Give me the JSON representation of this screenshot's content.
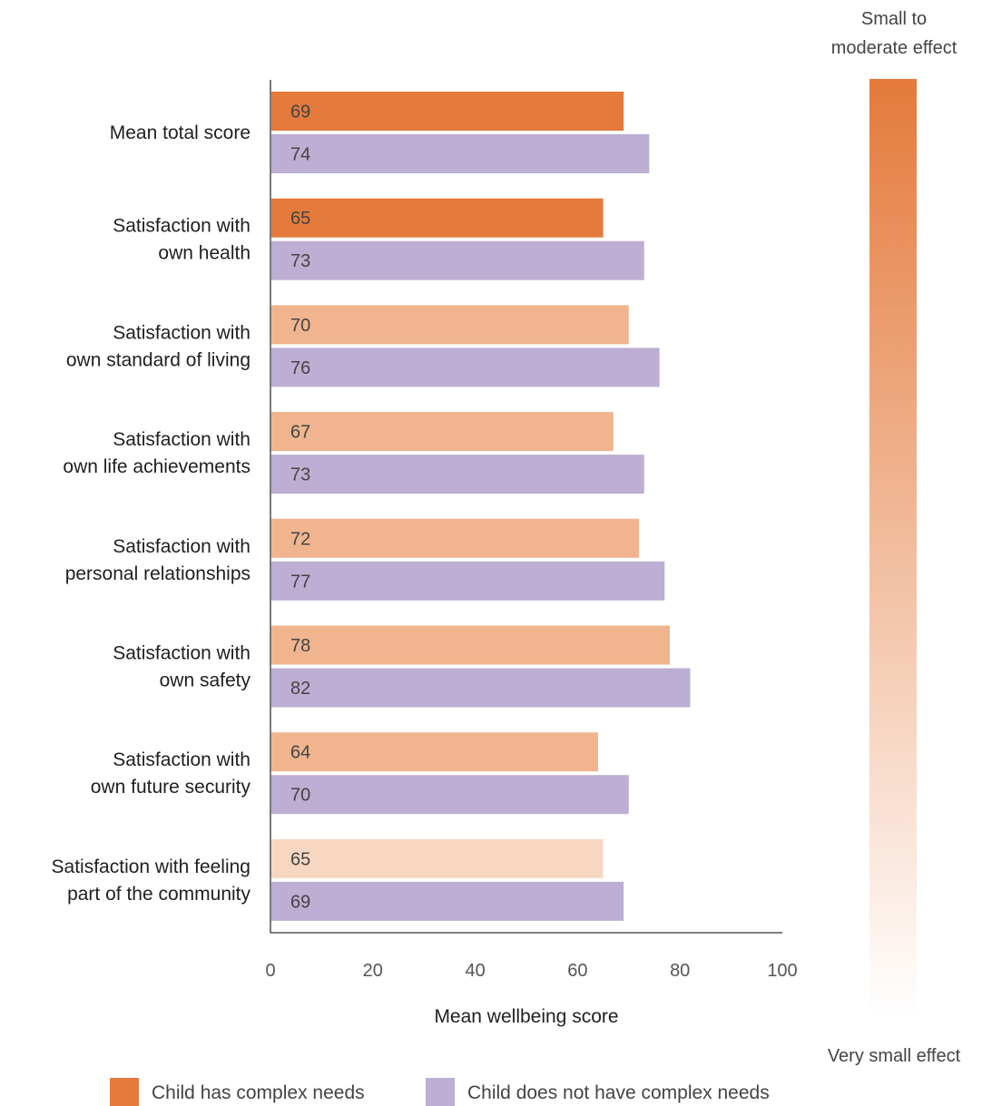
{
  "chart_data": {
    "type": "bar",
    "orientation": "horizontal",
    "categories": [
      [
        "Mean total score"
      ],
      [
        "Satisfaction with",
        "own health"
      ],
      [
        "Satisfaction with",
        "own standard of living"
      ],
      [
        "Satisfaction with",
        "own life achievements"
      ],
      [
        "Satisfaction with",
        "personal relationships"
      ],
      [
        "Satisfaction with",
        "own safety"
      ],
      [
        "Satisfaction with",
        "own future security"
      ],
      [
        "Satisfaction with feeling",
        "part of the community"
      ]
    ],
    "series": [
      {
        "name": "Child has complex needs",
        "values": [
          69,
          65,
          70,
          67,
          72,
          78,
          64,
          65
        ],
        "colors": [
          "#e47a3b",
          "#e47a3b",
          "#f0b58e",
          "#f0b58e",
          "#f0b58e",
          "#f0b58e",
          "#f0b58e",
          "#f8d7c2"
        ]
      },
      {
        "name": "Child does not have complex needs",
        "values": [
          74,
          73,
          76,
          73,
          77,
          82,
          70,
          69
        ],
        "color": "#bdaed3"
      }
    ],
    "xlabel": "Mean wellbeing score",
    "xlim": [
      0,
      100
    ],
    "xticks": [
      "0",
      "20",
      "40",
      "60",
      "80",
      "100"
    ],
    "grid": false,
    "legend_position": "bottom",
    "effect_scale": {
      "top_label": [
        "Small to",
        "moderate effect"
      ],
      "bottom_label": "Very small effect",
      "top_color": "#e47a3b",
      "bottom_color": "#ffffff"
    }
  }
}
